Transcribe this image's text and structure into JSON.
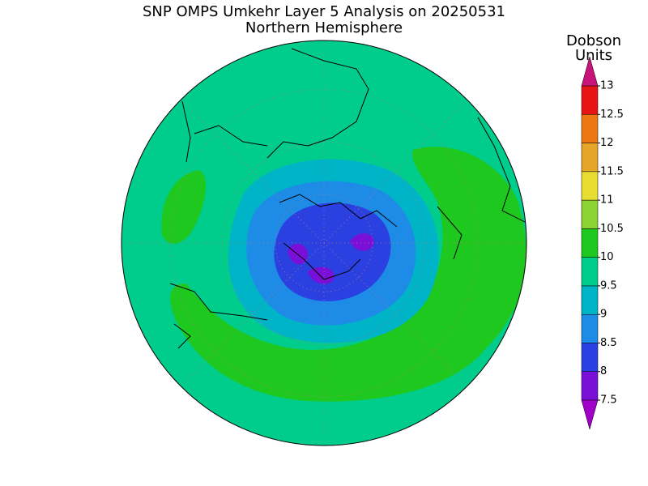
{
  "title": "SNP OMPS Umkehr Layer 5 Analysis on 20250531",
  "subtitle": "Northern Hemisphere",
  "colorbar": {
    "label": [
      "Dobson",
      "Units"
    ],
    "ticks": [
      7.5,
      8,
      8.5,
      9,
      9.5,
      10,
      10.5,
      11,
      11.5,
      12,
      12.5,
      13
    ],
    "colors": [
      "#7a10d8",
      "#2a40e0",
      "#1e8ce6",
      "#00b4c8",
      "#00cc8c",
      "#1ec81e",
      "#8cd232",
      "#e6dc32",
      "#e6a528",
      "#ec7814",
      "#e61414"
    ],
    "under_color": "#a000c8",
    "over_color": "#c8147a"
  }
}
